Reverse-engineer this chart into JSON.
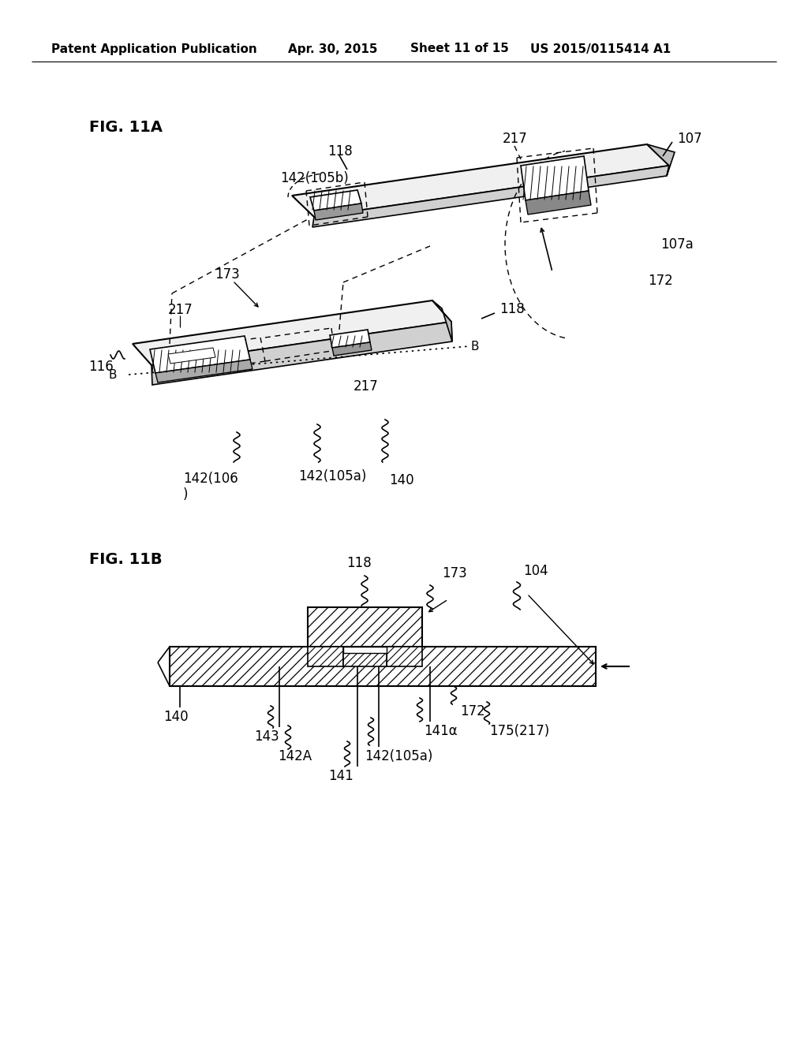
{
  "bg_color": "#ffffff",
  "header_text": "Patent Application Publication",
  "header_date": "Apr. 30, 2015",
  "header_sheet": "Sheet 11 of 15",
  "header_patent": "US 2015/0115414 A1",
  "fig11a_label": "FIG. 11A",
  "fig11b_label": "FIG. 11B",
  "text_color": "#000000"
}
